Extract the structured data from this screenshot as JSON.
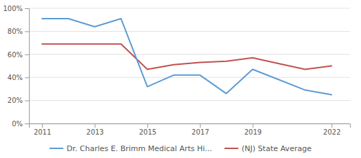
{
  "chart_data": {
    "type": "line",
    "x": [
      2011,
      2012,
      2013,
      2014,
      2015,
      2016,
      2017,
      2018,
      2019,
      2020,
      2021,
      2022
    ],
    "series": [
      {
        "name": "Dr. Charles E. Brimm Medical Arts Hi...",
        "color": "#5b9bd5",
        "values": [
          0.91,
          0.91,
          0.84,
          0.91,
          0.32,
          0.42,
          0.42,
          0.26,
          0.47,
          0.38,
          0.29,
          0.25
        ]
      },
      {
        "name": "(NJ) State Average",
        "color": "#c0504d",
        "values": [
          0.69,
          0.69,
          0.69,
          0.69,
          0.47,
          0.51,
          0.53,
          0.54,
          0.57,
          0.52,
          0.47,
          0.5
        ]
      }
    ],
    "xlim": [
      2010.5,
      2022.7
    ],
    "xticks": [
      2011,
      2013,
      2015,
      2017,
      2019,
      2022
    ],
    "ylim": [
      0,
      1.0
    ],
    "yticks": [
      {
        "value": 0.0,
        "label": "0%"
      },
      {
        "value": 0.2,
        "label": "20%"
      },
      {
        "value": 0.4,
        "label": "40%"
      },
      {
        "value": 0.6,
        "label": "60%"
      },
      {
        "value": 0.8,
        "label": "80%"
      },
      {
        "value": 1.0,
        "label": "100%"
      }
    ],
    "grid": true,
    "legend": "bottom"
  }
}
